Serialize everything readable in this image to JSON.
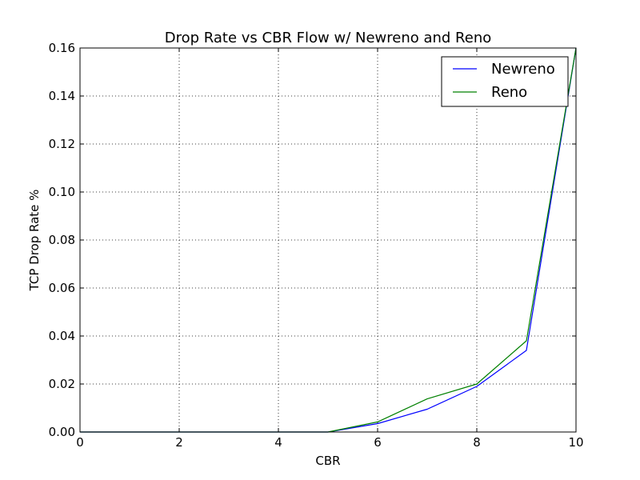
{
  "chart_data": {
    "type": "line",
    "title": "Drop Rate vs CBR Flow w/ Newreno and Reno",
    "xlabel": "CBR",
    "ylabel": "TCP Drop Rate %",
    "xlim": [
      0,
      10
    ],
    "ylim": [
      0,
      0.16
    ],
    "x_ticks": [
      "0",
      "2",
      "4",
      "6",
      "8",
      "10"
    ],
    "y_ticks": [
      "0.00",
      "0.02",
      "0.04",
      "0.06",
      "0.08",
      "0.10",
      "0.12",
      "0.14",
      "0.16"
    ],
    "grid": true,
    "legend_position": "top-right",
    "x": [
      0,
      1,
      2,
      3,
      4,
      5,
      6,
      7,
      8,
      9,
      10
    ],
    "series": [
      {
        "name": "Newreno",
        "color": "#0000ff",
        "values": [
          0,
          0,
          0,
          0,
          0,
          0,
          0.0035,
          0.0095,
          0.019,
          0.034,
          0.16
        ]
      },
      {
        "name": "Reno",
        "color": "#008000",
        "values": [
          0,
          0,
          0,
          0,
          0,
          0,
          0.0042,
          0.0138,
          0.02,
          0.038,
          0.16
        ]
      }
    ]
  }
}
